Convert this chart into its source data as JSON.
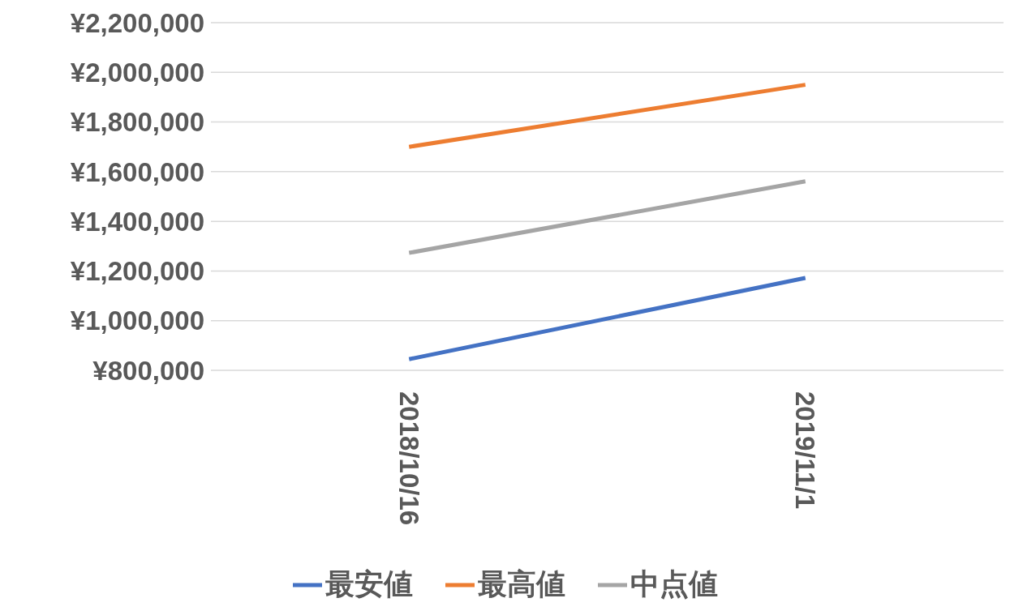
{
  "chart_data": {
    "type": "line",
    "categories": [
      "2018/10/16",
      "2019/11/1"
    ],
    "series": [
      {
        "name": "最安値",
        "color": "#4472c4",
        "values": [
          845000,
          1172000
        ]
      },
      {
        "name": "最高値",
        "color": "#ed7d31",
        "values": [
          1700000,
          1950000
        ]
      },
      {
        "name": "中点値",
        "color": "#a5a5a5",
        "values": [
          1273000,
          1561000
        ]
      }
    ],
    "ylim": [
      800000,
      2200000
    ],
    "yticks": [
      {
        "value": 800000,
        "label": "¥800,000"
      },
      {
        "value": 1000000,
        "label": "¥1,000,000"
      },
      {
        "value": 1200000,
        "label": "¥1,200,000"
      },
      {
        "value": 1400000,
        "label": "¥1,400,000"
      },
      {
        "value": 1600000,
        "label": "¥1,600,000"
      },
      {
        "value": 1800000,
        "label": "¥1,800,000"
      },
      {
        "value": 2000000,
        "label": "¥2,000,000"
      },
      {
        "value": 2200000,
        "label": "¥2,200,000"
      }
    ],
    "grid": "y",
    "legend": "bottom",
    "marker": "none",
    "line_style": "solid"
  }
}
